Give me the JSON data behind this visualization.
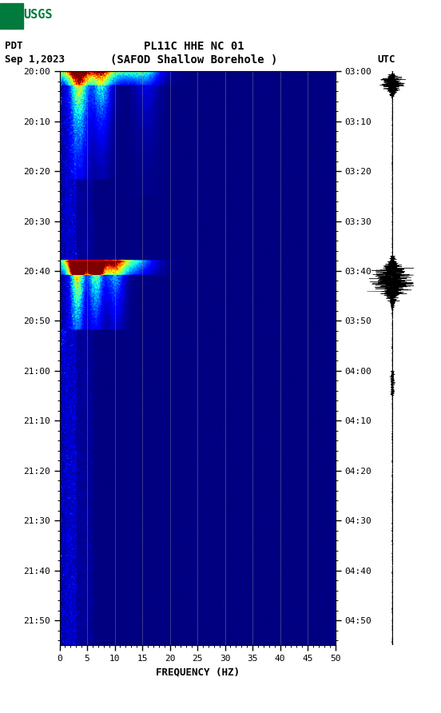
{
  "title_line1": "PL11C HHE NC 01",
  "title_line2": "(SAFOD Shallow Borehole )",
  "left_label": "PDT",
  "date_label": "Sep 1,2023",
  "right_label": "UTC",
  "xlabel": "FREQUENCY (HZ)",
  "freq_min": 0,
  "freq_max": 50,
  "freq_ticks": [
    0,
    5,
    10,
    15,
    20,
    25,
    30,
    35,
    40,
    45,
    50
  ],
  "left_time_labels": [
    "20:00",
    "20:10",
    "20:20",
    "20:30",
    "20:40",
    "20:50",
    "21:00",
    "21:10",
    "21:20",
    "21:30",
    "21:40",
    "21:50"
  ],
  "right_time_labels": [
    "03:00",
    "03:10",
    "03:20",
    "03:30",
    "03:40",
    "03:50",
    "04:00",
    "04:10",
    "04:20",
    "04:30",
    "04:40",
    "04:50"
  ],
  "total_minutes": 115,
  "fig_width": 5.52,
  "fig_height": 8.92,
  "dpi": 100
}
